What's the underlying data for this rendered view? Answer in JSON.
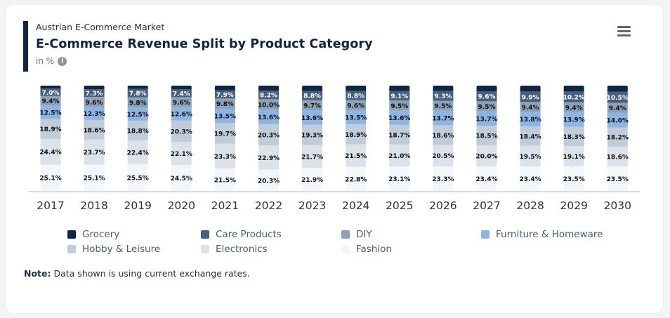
{
  "header": {
    "subtitle": "Austrian E-Commerce Market",
    "title": "E-Commerce Revenue Split by Product Category",
    "unit": "in %",
    "info_icon": "info-icon",
    "menu_icon": "hamburger-menu-icon"
  },
  "note": {
    "label": "Note:",
    "text": " Data shown is using current exchange rates."
  },
  "chart_data": {
    "type": "bar",
    "stacked": true,
    "normalized": true,
    "title": "E-Commerce Revenue Split by Product Category",
    "subtitle": "Austrian E-Commerce Market",
    "xlabel": "",
    "ylabel": "in %",
    "ylim": [
      0,
      100
    ],
    "grid": false,
    "legend_position": "bottom",
    "categories": [
      "2017",
      "2018",
      "2019",
      "2020",
      "2021",
      "2022",
      "2023",
      "2024",
      "2025",
      "2026",
      "2027",
      "2028",
      "2029",
      "2030"
    ],
    "series": [
      {
        "name": "Fashion",
        "color": "#f4f7fa",
        "show_labels": true,
        "values": [
          25.1,
          25.1,
          25.5,
          24.5,
          21.5,
          20.3,
          21.9,
          22.8,
          23.1,
          23.3,
          23.4,
          23.4,
          23.5,
          23.5
        ]
      },
      {
        "name": "Electronics",
        "color": "#dbe2ea",
        "show_labels": true,
        "values": [
          24.4,
          23.7,
          22.4,
          22.1,
          23.3,
          22.9,
          21.7,
          21.5,
          21.0,
          20.5,
          20.0,
          19.5,
          19.1,
          18.6
        ]
      },
      {
        "name": "Hobby & Leisure",
        "color": "#c0ccd9",
        "show_labels": true,
        "values": [
          18.9,
          18.6,
          18.8,
          20.3,
          19.7,
          20.3,
          19.3,
          18.9,
          18.7,
          18.6,
          18.5,
          18.4,
          18.3,
          18.2
        ]
      },
      {
        "name": "Furniture & Homeware",
        "color": "#8db4e3",
        "show_labels": true,
        "values": [
          12.5,
          12.3,
          12.5,
          12.6,
          13.5,
          13.6,
          13.6,
          13.5,
          13.6,
          13.7,
          13.7,
          13.8,
          13.9,
          14.0
        ]
      },
      {
        "name": "DIY",
        "color": "#8ea1b9",
        "show_labels": true,
        "values": [
          9.4,
          9.6,
          9.8,
          9.6,
          9.8,
          10.0,
          9.7,
          9.6,
          9.5,
          9.5,
          9.5,
          9.4,
          9.4,
          9.4
        ]
      },
      {
        "name": "Care Products",
        "color": "#485f7d",
        "show_labels": true,
        "label_color": "#ffffff",
        "values": [
          7.0,
          7.3,
          7.8,
          7.4,
          7.9,
          8.2,
          8.8,
          8.8,
          9.1,
          9.3,
          9.6,
          9.9,
          10.2,
          10.5
        ]
      },
      {
        "name": "Grocery",
        "color": "#0f2642",
        "show_labels": false,
        "values": [
          2.7,
          3.4,
          3.2,
          3.5,
          4.3,
          4.7,
          5.0,
          4.9,
          5.0,
          5.1,
          5.3,
          5.6,
          5.6,
          5.8
        ]
      }
    ],
    "legend": [
      {
        "name": "Grocery",
        "color": "#0f2642"
      },
      {
        "name": "Care Products",
        "color": "#485f7d"
      },
      {
        "name": "DIY",
        "color": "#8ea1b9"
      },
      {
        "name": "Furniture & Homeware",
        "color": "#8db4e3"
      },
      {
        "name": "Hobby & Leisure",
        "color": "#c0ccd9"
      },
      {
        "name": "Electronics",
        "color": "#dbe2ea"
      },
      {
        "name": "Fashion",
        "color": "#f4f7fa"
      }
    ]
  }
}
